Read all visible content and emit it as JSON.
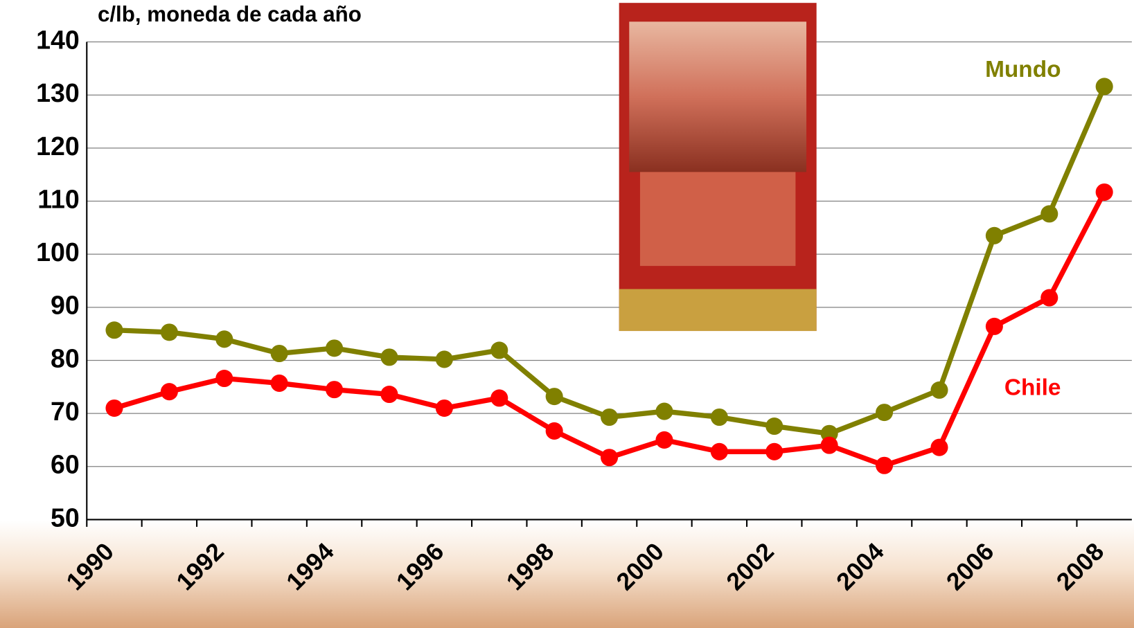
{
  "chart_data": {
    "type": "line",
    "y_label": "c/lb, moneda de cada año",
    "categories": [
      "1990",
      null,
      "1992",
      null,
      "1994",
      null,
      "1996",
      null,
      "1998",
      null,
      "2000",
      null,
      "2002",
      null,
      "2004",
      null,
      "2006",
      null,
      "2008"
    ],
    "series": [
      {
        "name": "Mundo",
        "color": "#808000",
        "values": [
          85.7,
          85.3,
          84.0,
          81.3,
          82.3,
          80.6,
          80.2,
          81.9,
          73.2,
          69.3,
          70.4,
          69.3,
          67.6,
          66.2,
          70.2,
          74.4,
          103.5,
          107.6,
          131.6
        ]
      },
      {
        "name": "Chile",
        "color": "#ff0000",
        "values": [
          71.0,
          74.1,
          76.6,
          75.7,
          74.5,
          73.6,
          71.0,
          72.9,
          66.7,
          61.7,
          65.0,
          62.8,
          62.8,
          64.0,
          60.2,
          63.6,
          86.4,
          91.8,
          111.7
        ]
      }
    ],
    "ylim": [
      50,
      140
    ],
    "yticks": [
      50,
      60,
      70,
      80,
      90,
      100,
      110,
      120,
      130,
      140
    ],
    "grid": true
  }
}
